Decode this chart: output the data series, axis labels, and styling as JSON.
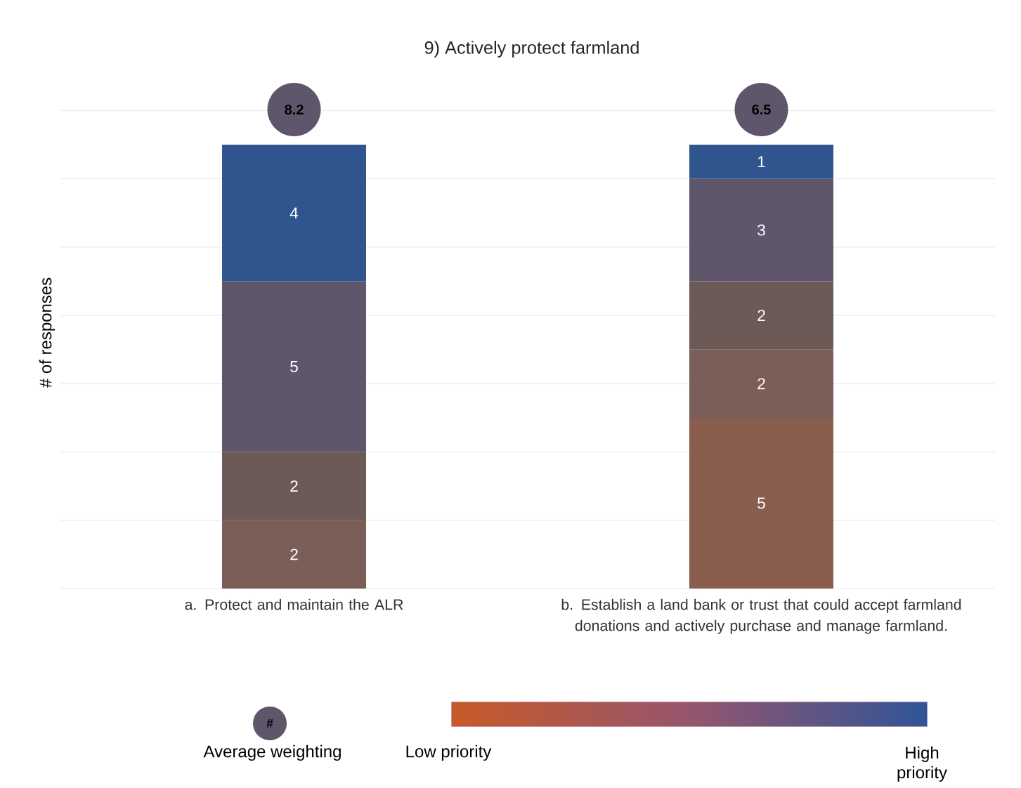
{
  "chart_data": {
    "type": "bar",
    "title": "9) Actively protect farmland",
    "ylabel": "# of responses",
    "categories": [
      "a. Protect and maintain the ALR",
      "b. Establish a land bank or trust that could accept farmland donations and actively purchase and manage farmland."
    ],
    "stacked": true,
    "data_labels": true,
    "grid": "y",
    "tick_labels": "x",
    "series": [
      {
        "color": "#8a5e4e",
        "values": [
          null,
          5
        ]
      },
      {
        "color": "#7b5e57",
        "values": [
          2,
          2
        ]
      },
      {
        "color": "#6b5a55",
        "values": [
          2,
          2
        ]
      },
      {
        "color": "#5f566b",
        "values": [
          5,
          3
        ]
      },
      {
        "color": "#30558e",
        "values": [
          4,
          1
        ]
      }
    ],
    "annotations": [
      "8.2",
      "6.5",
      "#",
      "Average weighting",
      "Low priority",
      "High priority"
    ]
  }
}
